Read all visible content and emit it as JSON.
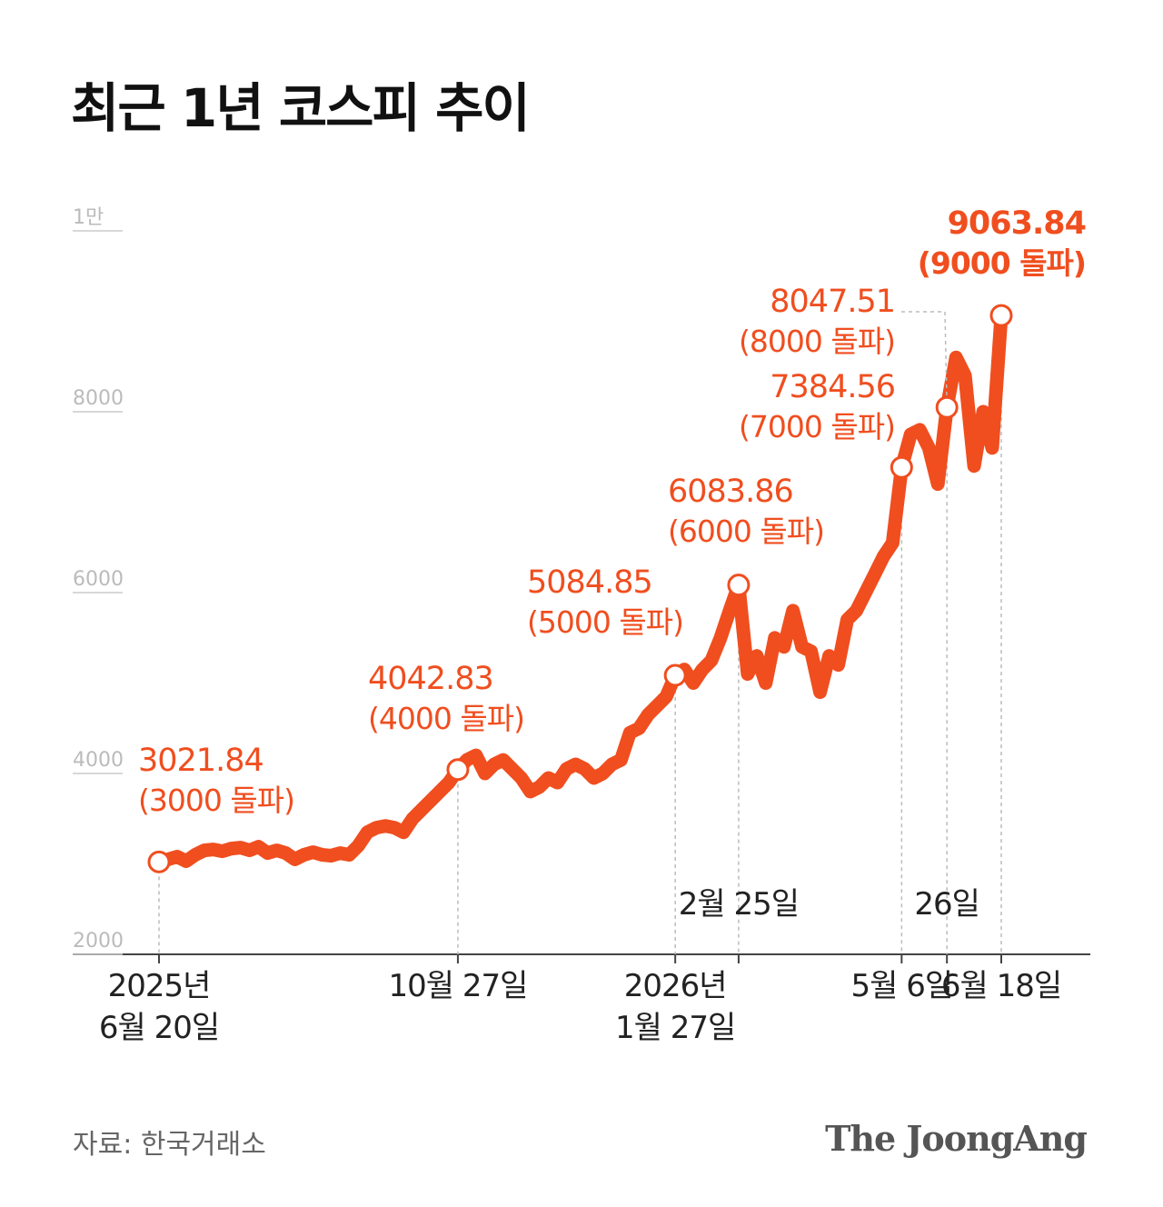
{
  "chart_data": {
    "type": "line",
    "title": "최근 1년 코스피 추이",
    "source": "자료: 한국거래소",
    "logo": "The JoongAng",
    "ylim": [
      2000,
      10000
    ],
    "yticks": [
      2000,
      4000,
      6000,
      8000,
      {
        "value": 10000,
        "label": "1만"
      }
    ],
    "grid": true,
    "categories": [
      "2025년\n6월 20일",
      null,
      null,
      null,
      null,
      null,
      null,
      null,
      null,
      null,
      null,
      null,
      null,
      null,
      null,
      null,
      null,
      null,
      null,
      null,
      null,
      null,
      null,
      null,
      null,
      null,
      null,
      null,
      null,
      null,
      null,
      null,
      null,
      "10월 27일",
      null,
      null,
      null,
      null,
      null,
      null,
      null,
      null,
      null,
      null,
      null,
      null,
      null,
      null,
      null,
      null,
      null,
      null,
      null,
      null,
      null,
      null,
      null,
      "2026년\n1월 27일",
      null,
      null,
      null,
      null,
      null,
      null,
      "2월 25일",
      null,
      null,
      null,
      null,
      null,
      null,
      null,
      null,
      null,
      null,
      null,
      null,
      null,
      null,
      null,
      null,
      null,
      "5월 6일",
      null,
      null,
      null,
      null,
      "26일",
      null,
      null,
      null,
      null,
      null,
      "6월 18일"
    ],
    "series": [
      {
        "name": "코스피",
        "color": "#f04e1f",
        "values": [
          3021.84,
          3050,
          3080,
          3030,
          3100,
          3150,
          3160,
          3140,
          3170,
          3180,
          3150,
          3190,
          3120,
          3150,
          3120,
          3050,
          3100,
          3130,
          3100,
          3090,
          3120,
          3100,
          3200,
          3350,
          3400,
          3420,
          3400,
          3350,
          3500,
          3600,
          3700,
          3800,
          3900,
          4042.83,
          4150,
          4200,
          4000,
          4100,
          4150,
          4050,
          3950,
          3800,
          3850,
          3950,
          3900,
          4050,
          4100,
          4050,
          3950,
          4000,
          4100,
          4150,
          4450,
          4500,
          4650,
          4750,
          4850,
          5084.85,
          5150,
          5000,
          5150,
          5250,
          5500,
          5800,
          6083.86,
          5100,
          5300,
          5000,
          5500,
          5400,
          5800,
          5400,
          5350,
          4900,
          5300,
          5200,
          5700,
          5800,
          6000,
          6200,
          6400,
          6550,
          7384.56,
          7750,
          7800,
          7600,
          7200,
          8047.51,
          8600,
          8400,
          7400,
          8000,
          7600,
          9063.84
        ],
        "notes": [
          "(3000 돌파)",
          null,
          null,
          null,
          null,
          null,
          null,
          null,
          null,
          null,
          null,
          null,
          null,
          null,
          null,
          null,
          null,
          null,
          null,
          null,
          null,
          null,
          null,
          null,
          null,
          null,
          null,
          null,
          null,
          null,
          null,
          null,
          null,
          "(4000 돌파)",
          null,
          null,
          null,
          null,
          null,
          null,
          null,
          null,
          null,
          null,
          null,
          null,
          null,
          null,
          null,
          null,
          null,
          null,
          null,
          null,
          null,
          null,
          null,
          "(5000 돌파)",
          null,
          null,
          null,
          null,
          null,
          null,
          "(6000 돌파)",
          null,
          null,
          null,
          null,
          null,
          null,
          null,
          null,
          null,
          null,
          null,
          null,
          null,
          null,
          null,
          null,
          null,
          "(7000 돌파)",
          null,
          null,
          null,
          null,
          "(8000 돌파)",
          null,
          null,
          null,
          null,
          null,
          "(9000 돌파)"
        ]
      }
    ]
  }
}
